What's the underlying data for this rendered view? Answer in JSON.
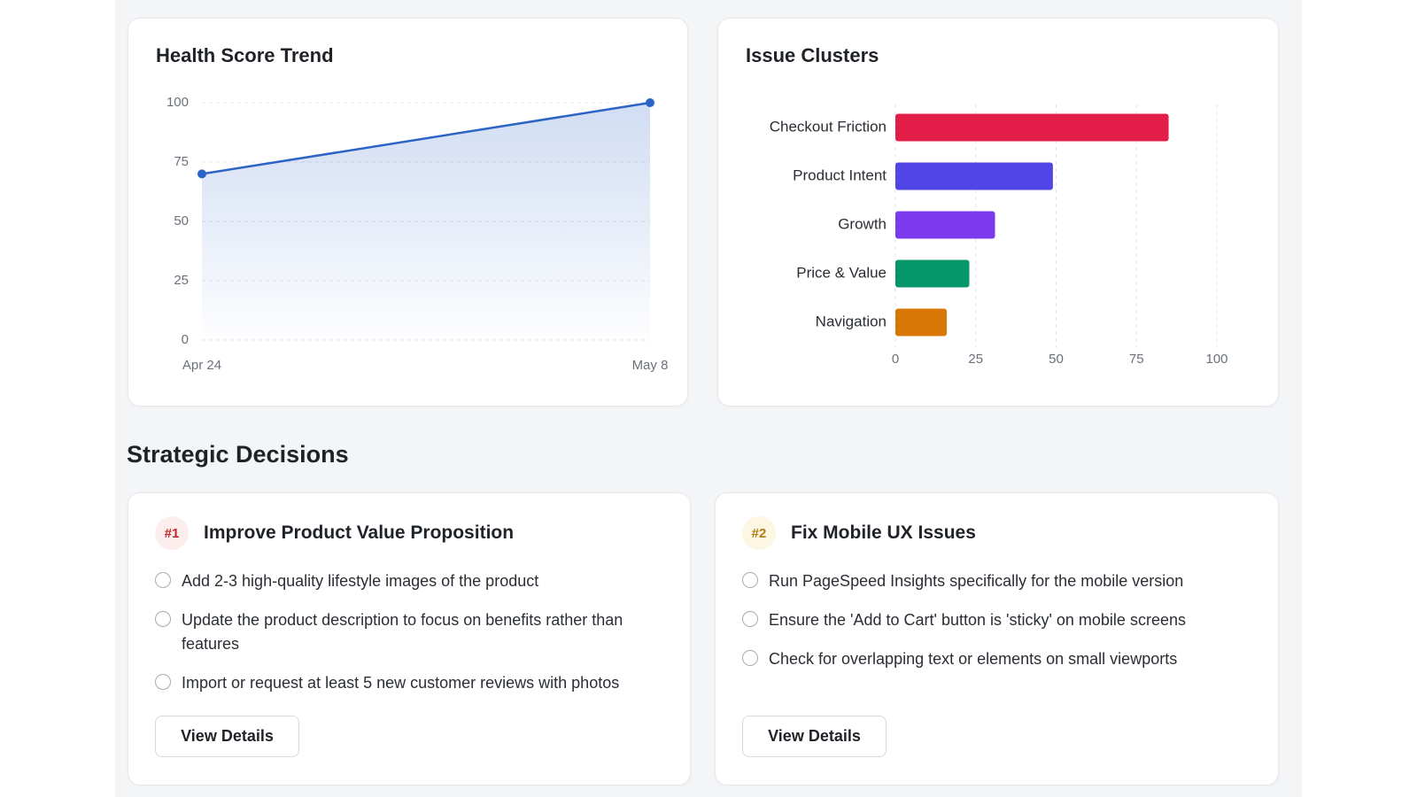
{
  "chart_data": [
    {
      "type": "line",
      "title": "Health Score Trend",
      "categories": [
        "Apr 24",
        "May 8"
      ],
      "values": [
        70,
        100
      ],
      "color": "#2b63c6",
      "ylim": [
        0,
        100
      ],
      "yticks": [
        0,
        25,
        50,
        75,
        100
      ],
      "grid": true
    },
    {
      "type": "hbar",
      "title": "Issue Clusters",
      "categories": [
        "Checkout Friction",
        "Product Intent",
        "Growth",
        "Price & Value",
        "Navigation"
      ],
      "values": [
        85,
        49,
        31,
        23,
        16
      ],
      "colors": [
        "#e11d48",
        "#4f46e5",
        "#7c3aed",
        "#059669",
        "#d97706"
      ],
      "xlim": [
        0,
        100
      ],
      "xticks": [
        0,
        25,
        50,
        75,
        100
      ],
      "grid": true
    }
  ],
  "section_title": "Strategic Decisions",
  "decisions": [
    {
      "rank": "#1",
      "title": "Improve Product Value Proposition",
      "tasks": [
        "Add 2-3 high-quality lifestyle images of the product",
        "Update the product description to focus on benefits rather than features",
        "Import or request at least 5 new customer reviews with photos"
      ],
      "button": "View Details"
    },
    {
      "rank": "#2",
      "title": "Fix Mobile UX Issues",
      "tasks": [
        "Run PageSpeed Insights specifically for the mobile version",
        "Ensure the 'Add to Cart' button is 'sticky' on mobile screens",
        "Check for overlapping text or elements on small viewports"
      ],
      "button": "View Details"
    }
  ]
}
